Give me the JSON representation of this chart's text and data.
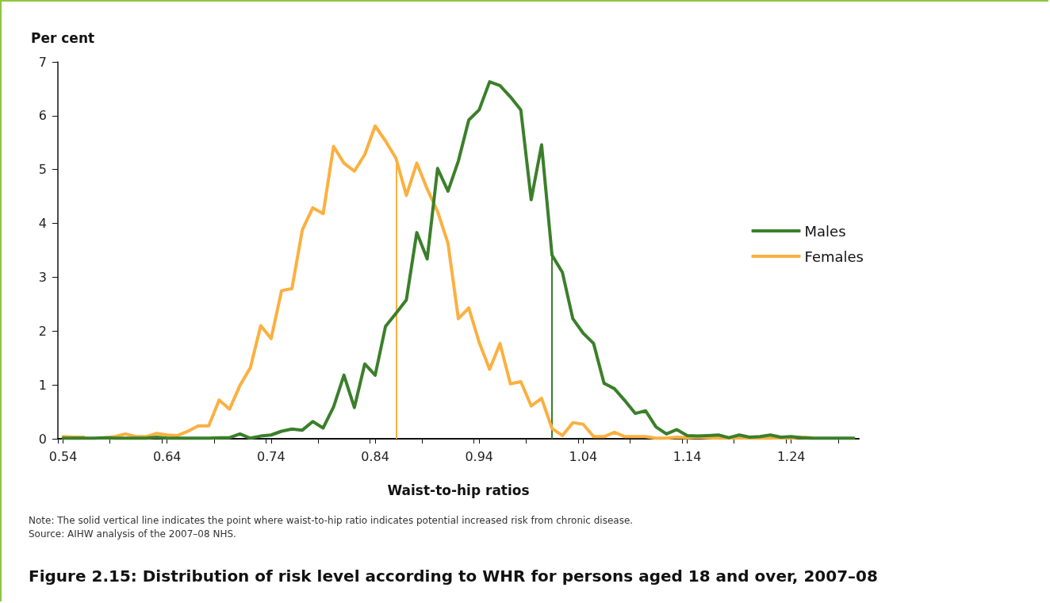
{
  "chart_data": {
    "type": "line",
    "title": "Figure 2.15: Distribution of risk level according to WHR for persons aged 18 and over, 2007–08",
    "xlabel": "Waist-to-hip ratios",
    "ylabel": "Per cent",
    "annotations": [
      "Note: The solid vertical line indicates the point where waist-to-hip ratio indicates potential increased risk from chronic disease.",
      "Source: AIHW analysis of the 2007–08 NHS."
    ],
    "x": [
      0.54,
      0.55,
      0.56,
      0.57,
      0.58,
      0.59,
      0.6,
      0.61,
      0.62,
      0.63,
      0.64,
      0.65,
      0.66,
      0.67,
      0.68,
      0.69,
      0.7,
      0.71,
      0.72,
      0.73,
      0.74,
      0.75,
      0.76,
      0.77,
      0.78,
      0.79,
      0.8,
      0.81,
      0.82,
      0.83,
      0.84,
      0.85,
      0.86,
      0.87,
      0.88,
      0.89,
      0.9,
      0.91,
      0.92,
      0.93,
      0.94,
      0.95,
      0.96,
      0.97,
      0.98,
      0.99,
      1.0,
      1.01,
      1.02,
      1.03,
      1.04,
      1.05,
      1.06,
      1.07,
      1.08,
      1.09,
      1.1,
      1.11,
      1.12,
      1.13,
      1.14,
      1.15,
      1.16,
      1.17,
      1.18,
      1.19,
      1.2,
      1.21,
      1.22,
      1.23,
      1.24,
      1.25,
      1.26,
      1.27,
      1.28,
      1.29,
      1.3
    ],
    "series": [
      {
        "name": "Males",
        "color": "#3b7f2b",
        "values": [
          0.01,
          0.01,
          0.01,
          0.01,
          0.02,
          0.01,
          0.01,
          0.01,
          0.01,
          0.03,
          0.01,
          0.01,
          0.01,
          0.01,
          0.01,
          0.02,
          0.02,
          0.09,
          0.01,
          0.05,
          0.07,
          0.14,
          0.18,
          0.16,
          0.32,
          0.2,
          0.59,
          1.18,
          0.58,
          1.39,
          1.18,
          2.09,
          2.33,
          2.58,
          3.83,
          3.34,
          5.02,
          4.6,
          5.16,
          5.92,
          6.11,
          6.63,
          6.56,
          6.35,
          6.11,
          4.44,
          5.46,
          3.41,
          3.09,
          2.23,
          1.96,
          1.77,
          1.03,
          0.93,
          0.71,
          0.47,
          0.52,
          0.22,
          0.09,
          0.17,
          0.06,
          0.05,
          0.06,
          0.07,
          0.02,
          0.07,
          0.03,
          0.04,
          0.07,
          0.03,
          0.04,
          0.02,
          0.01,
          0.01,
          0.01,
          0.01,
          0.01
        ]
      },
      {
        "name": "Females",
        "color": "#fbb040",
        "values": [
          0.04,
          0.03,
          0.03,
          null,
          0.02,
          0.04,
          0.09,
          0.04,
          0.04,
          0.1,
          0.07,
          0.06,
          0.14,
          0.24,
          0.24,
          0.72,
          0.55,
          0.99,
          1.32,
          2.1,
          1.86,
          2.75,
          2.79,
          3.88,
          4.29,
          4.18,
          5.43,
          5.12,
          4.97,
          5.28,
          5.81,
          5.53,
          5.21,
          4.52,
          5.12,
          4.64,
          4.22,
          3.63,
          2.23,
          2.43,
          1.79,
          1.29,
          1.77,
          1.02,
          1.06,
          0.61,
          0.75,
          0.19,
          0.06,
          0.3,
          0.27,
          0.04,
          0.04,
          0.12,
          0.04,
          0.04,
          0.04,
          0.01,
          0.01,
          0.03,
          0.02,
          0.03,
          0.02,
          0.01,
          0.01,
          0.02,
          0.01,
          0.01,
          0.01,
          0.02,
          0.01,
          0.03,
          0.02,
          null,
          null,
          null,
          null
        ]
      }
    ],
    "ref_lines": [
      {
        "axis": "x",
        "value": 0.86,
        "color": "#fbb040"
      },
      {
        "axis": "x",
        "value": 1.01,
        "color": "#3b7f2b"
      }
    ],
    "xlim": [
      0.535,
      1.305
    ],
    "xticks": [
      0.54,
      0.64,
      0.74,
      0.84,
      0.94,
      1.04,
      1.14,
      1.24,
      {
        "value": 0.535,
        "label": null
      },
      {
        "value": 0.585,
        "label": null
      },
      {
        "value": 0.635,
        "label": null
      },
      {
        "value": 0.685,
        "label": null
      },
      {
        "value": 0.735,
        "label": null
      },
      {
        "value": 0.785,
        "label": null
      },
      {
        "value": 0.835,
        "label": null
      },
      {
        "value": 0.885,
        "label": null
      },
      {
        "value": 0.935,
        "label": null
      },
      {
        "value": 0.985,
        "label": null
      },
      {
        "value": 1.035,
        "label": null
      },
      {
        "value": 1.085,
        "label": null
      },
      {
        "value": 1.135,
        "label": null
      },
      {
        "value": 1.185,
        "label": null
      },
      {
        "value": 1.235,
        "label": null
      },
      {
        "value": 1.285,
        "label": null
      }
    ],
    "ylim": [
      0,
      7
    ],
    "yticks": [
      0,
      1,
      2,
      3,
      4,
      5,
      6,
      7
    ],
    "grid": false,
    "legend": "right",
    "marker": "none",
    "line_style": "solid"
  }
}
